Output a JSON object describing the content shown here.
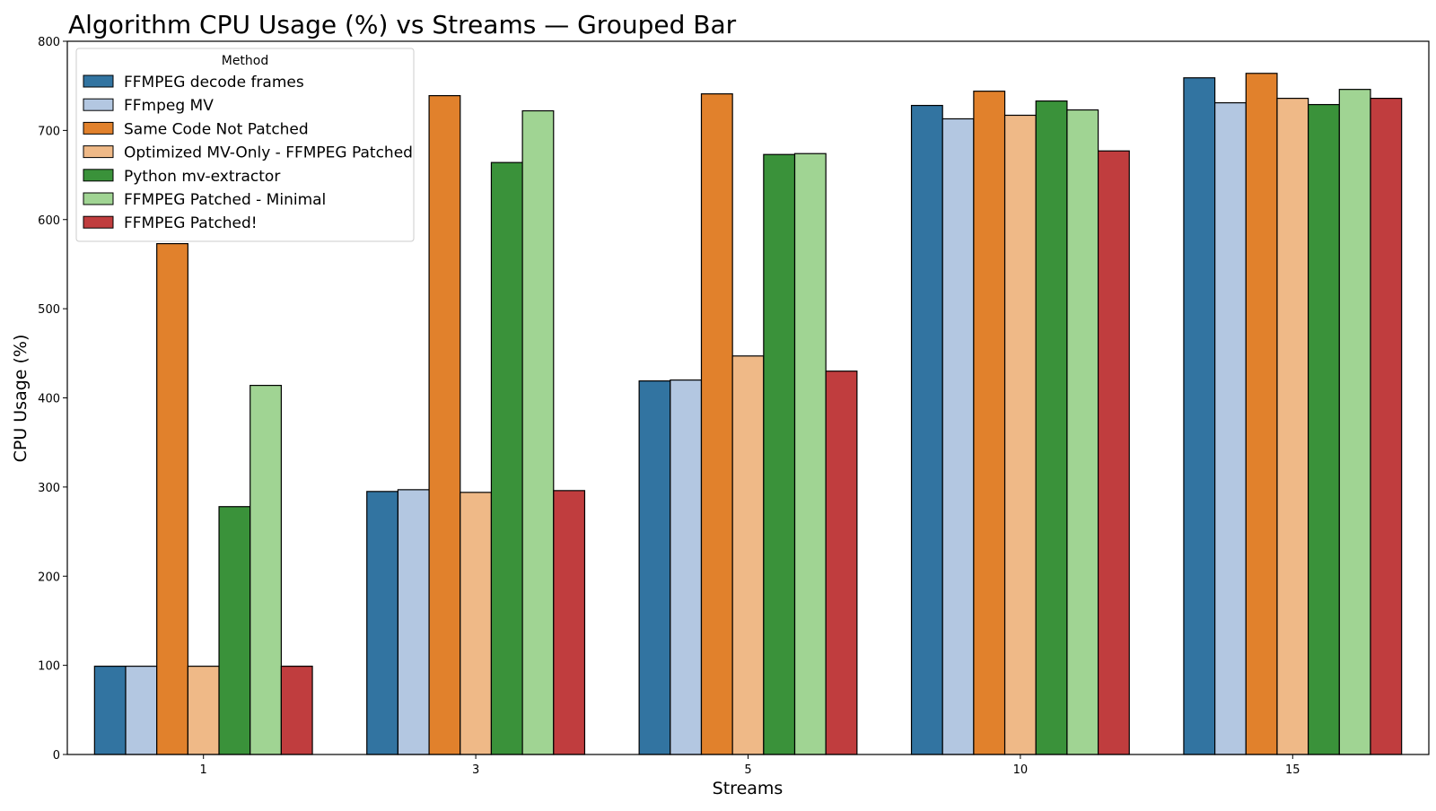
{
  "chart_data": {
    "type": "bar",
    "title": "Algorithm CPU Usage (%) vs Streams — Grouped Bar",
    "xlabel": "Streams",
    "ylabel": "CPU Usage (%)",
    "categories": [
      "1",
      "3",
      "5",
      "10",
      "15"
    ],
    "ylim": [
      0,
      800
    ],
    "yticks": [
      0,
      100,
      200,
      300,
      400,
      500,
      600,
      700,
      800
    ],
    "grid": false,
    "legend": {
      "title": "Method",
      "placement": "top-left"
    },
    "series": [
      {
        "name": "FFMPEG decode frames",
        "color": "#3274a1",
        "values": [
          99,
          295,
          419,
          728,
          759
        ]
      },
      {
        "name": "FFmpeg MV",
        "color": "#b3c7e1",
        "values": [
          99,
          297,
          420,
          713,
          731
        ]
      },
      {
        "name": "Same Code Not Patched",
        "color": "#e1812c",
        "values": [
          573,
          739,
          741,
          744,
          764
        ]
      },
      {
        "name": "Optimized MV-Only - FFMPEG Patched",
        "color": "#efb987",
        "values": [
          99,
          294,
          447,
          717,
          736
        ]
      },
      {
        "name": "Python mv-extractor",
        "color": "#3a923a",
        "values": [
          278,
          664,
          673,
          733,
          729
        ]
      },
      {
        "name": "FFMPEG Patched - Minimal",
        "color": "#a0d493",
        "values": [
          414,
          722,
          674,
          723,
          746
        ]
      },
      {
        "name": "FFMPEG Patched!",
        "color": "#c03d3e",
        "values": [
          99,
          296,
          430,
          677,
          736
        ]
      }
    ]
  }
}
